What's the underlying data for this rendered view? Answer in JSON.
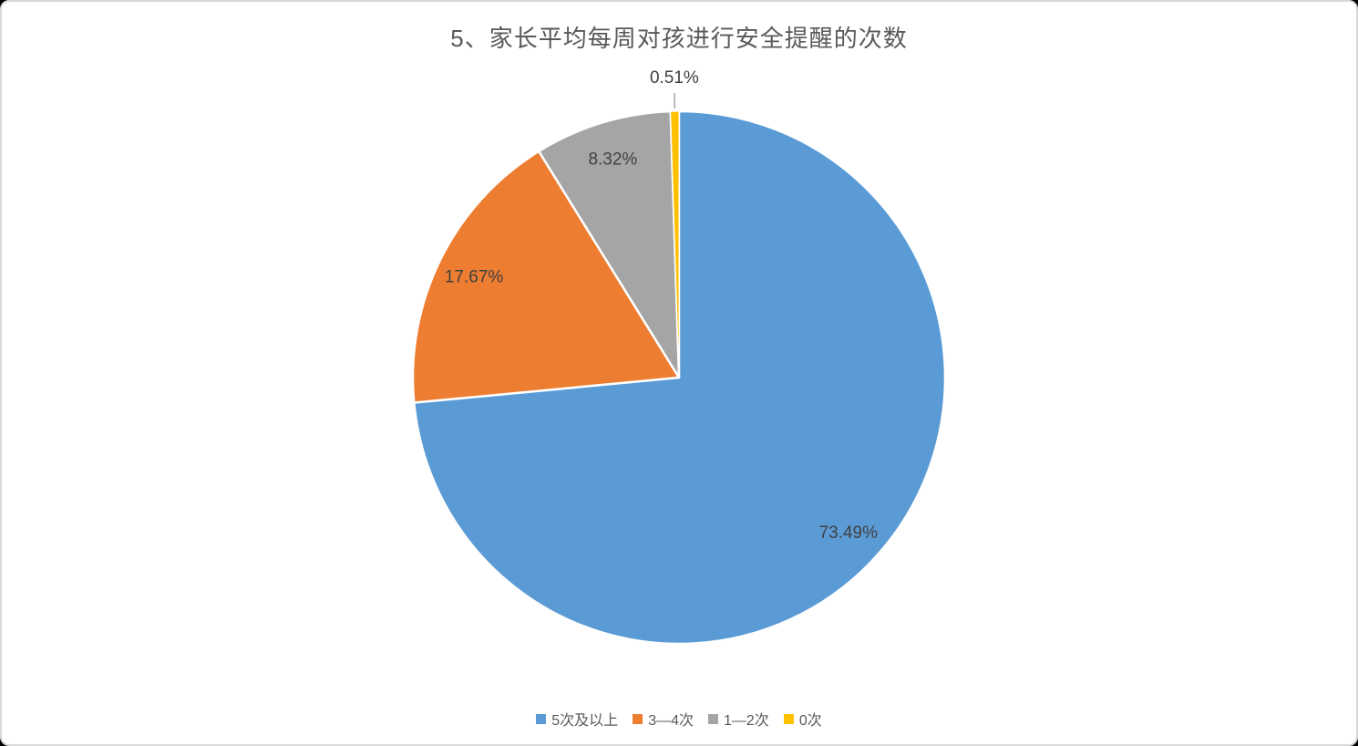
{
  "window": {
    "background": "#ffffff",
    "border_color": "#d9d9d9"
  },
  "chart_data": {
    "type": "pie",
    "title": "5、家长平均每周对孩进行安全提醒的次数",
    "title_color": "#595959",
    "categories": [
      "5次及以上",
      "3—4次",
      "1—2次",
      "0次"
    ],
    "values": [
      73.49,
      17.67,
      8.32,
      0.51
    ],
    "data_labels": [
      "73.49%",
      "17.67%",
      "8.32%",
      "0.51%"
    ],
    "colors": [
      "#5B9BD5",
      "#ED7D31",
      "#A5A5A5",
      "#FFC000"
    ],
    "label_color": "#404040",
    "slice_border_color": "#ffffff",
    "leader_line_color": "#a6a6a6",
    "start_angle": 0,
    "direction": "clockwise",
    "legend_position": "bottom"
  }
}
